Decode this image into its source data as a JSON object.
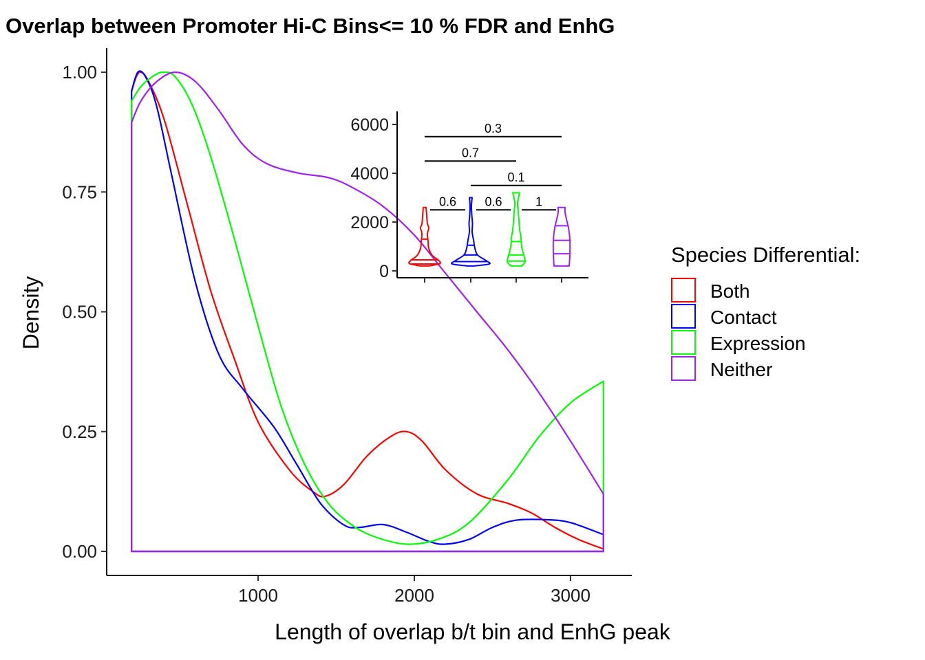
{
  "chart_data": [
    {
      "type": "area",
      "title": "Overlap between Promoter Hi-C Bins<= 10 % FDR and EnhG",
      "xlabel": "Length of overlap b/t bin and EnhG peak",
      "ylabel": "Density",
      "xlim": [
        155,
        3220
      ],
      "ylim": [
        -0.05,
        1.05
      ],
      "x_ticks": [
        1000,
        2000,
        3000
      ],
      "x_tick_labels": [
        "1000",
        "2000",
        "3000"
      ],
      "y_ticks": [
        0,
        0.25,
        0.5,
        0.75,
        1.0
      ],
      "y_tick_labels": [
        "0.00",
        "0.25",
        "0.50",
        "0.75",
        "1.00"
      ],
      "grid": false,
      "legend_position": "right",
      "legend_title": "Species Differential:",
      "series": [
        {
          "name": "Both",
          "color": "#ff0000",
          "points": [
            [
              190,
              0.96
            ],
            [
              220,
              0.99
            ],
            [
              250,
              1.0
            ],
            [
              300,
              0.98
            ],
            [
              400,
              0.9
            ],
            [
              550,
              0.72
            ],
            [
              700,
              0.54
            ],
            [
              850,
              0.4
            ],
            [
              1000,
              0.27
            ],
            [
              1200,
              0.17
            ],
            [
              1350,
              0.125
            ],
            [
              1430,
              0.115
            ],
            [
              1550,
              0.14
            ],
            [
              1700,
              0.2
            ],
            [
              1850,
              0.24
            ],
            [
              1950,
              0.25
            ],
            [
              2050,
              0.23
            ],
            [
              2200,
              0.17
            ],
            [
              2400,
              0.12
            ],
            [
              2600,
              0.1
            ],
            [
              2750,
              0.08
            ],
            [
              2900,
              0.05
            ],
            [
              3050,
              0.025
            ],
            [
              3210,
              0.005
            ]
          ]
        },
        {
          "name": "Contact",
          "color": "#0000ff",
          "points": [
            [
              190,
              0.96
            ],
            [
              230,
              1.0
            ],
            [
              280,
              0.99
            ],
            [
              350,
              0.93
            ],
            [
              450,
              0.78
            ],
            [
              600,
              0.56
            ],
            [
              750,
              0.41
            ],
            [
              900,
              0.34
            ],
            [
              1100,
              0.26
            ],
            [
              1250,
              0.18
            ],
            [
              1400,
              0.1
            ],
            [
              1550,
              0.055
            ],
            [
              1650,
              0.05
            ],
            [
              1800,
              0.056
            ],
            [
              1950,
              0.04
            ],
            [
              2100,
              0.02
            ],
            [
              2200,
              0.015
            ],
            [
              2350,
              0.025
            ],
            [
              2500,
              0.05
            ],
            [
              2650,
              0.065
            ],
            [
              2850,
              0.066
            ],
            [
              3000,
              0.06
            ],
            [
              3210,
              0.035
            ]
          ]
        },
        {
          "name": "Expression",
          "color": "#00ff00",
          "points": [
            [
              190,
              0.94
            ],
            [
              250,
              0.97
            ],
            [
              320,
              0.99
            ],
            [
              390,
              1.0
            ],
            [
              470,
              0.99
            ],
            [
              580,
              0.93
            ],
            [
              700,
              0.82
            ],
            [
              850,
              0.65
            ],
            [
              1000,
              0.47
            ],
            [
              1150,
              0.3
            ],
            [
              1300,
              0.18
            ],
            [
              1450,
              0.1
            ],
            [
              1600,
              0.055
            ],
            [
              1750,
              0.03
            ],
            [
              1950,
              0.015
            ],
            [
              2150,
              0.025
            ],
            [
              2350,
              0.06
            ],
            [
              2600,
              0.15
            ],
            [
              2800,
              0.24
            ],
            [
              3000,
              0.31
            ],
            [
              3210,
              0.355
            ]
          ]
        },
        {
          "name": "Neither",
          "color": "#a020f0",
          "points": [
            [
              190,
              0.895
            ],
            [
              250,
              0.94
            ],
            [
              350,
              0.98
            ],
            [
              470,
              1.0
            ],
            [
              600,
              0.98
            ],
            [
              750,
              0.92
            ],
            [
              900,
              0.85
            ],
            [
              1050,
              0.81
            ],
            [
              1250,
              0.79
            ],
            [
              1450,
              0.78
            ],
            [
              1600,
              0.76
            ],
            [
              1800,
              0.72
            ],
            [
              2000,
              0.66
            ],
            [
              2200,
              0.58
            ],
            [
              2400,
              0.5
            ],
            [
              2600,
              0.42
            ],
            [
              2800,
              0.33
            ],
            [
              3000,
              0.23
            ],
            [
              3210,
              0.12
            ]
          ]
        }
      ]
    },
    {
      "type": "violin",
      "ylim": [
        -300,
        6500
      ],
      "y_ticks": [
        0,
        2000,
        4000,
        6000
      ],
      "y_tick_labels": [
        "0",
        "2000",
        "4000",
        "6000"
      ],
      "groups": [
        {
          "name": "Both",
          "color": "#ff0000",
          "min": 200,
          "max": 2600,
          "quartiles": [
            280,
            450,
            1300
          ]
        },
        {
          "name": "Contact",
          "color": "#0000ff",
          "min": 200,
          "max": 3000,
          "quartiles": [
            380,
            650,
            1050
          ]
        },
        {
          "name": "Expression",
          "color": "#00ff00",
          "min": 200,
          "max": 3200,
          "quartiles": [
            400,
            650,
            1200
          ]
        },
        {
          "name": "Neither",
          "color": "#a020f0",
          "min": 200,
          "max": 2600,
          "quartiles": [
            700,
            1250,
            1850
          ]
        }
      ],
      "comparisons": [
        {
          "from": 0,
          "to": 3,
          "y": 5500,
          "label": "0.3"
        },
        {
          "from": 0,
          "to": 2,
          "y": 4500,
          "label": "0.7"
        },
        {
          "from": 1,
          "to": 3,
          "y": 3500,
          "label": "0.1"
        },
        {
          "from": 0,
          "to": 1,
          "y": 2500,
          "label": "0.6"
        },
        {
          "from": 1,
          "to": 2,
          "y": 2500,
          "label": "0.6"
        },
        {
          "from": 2,
          "to": 3,
          "y": 2500,
          "label": "1"
        }
      ]
    }
  ]
}
